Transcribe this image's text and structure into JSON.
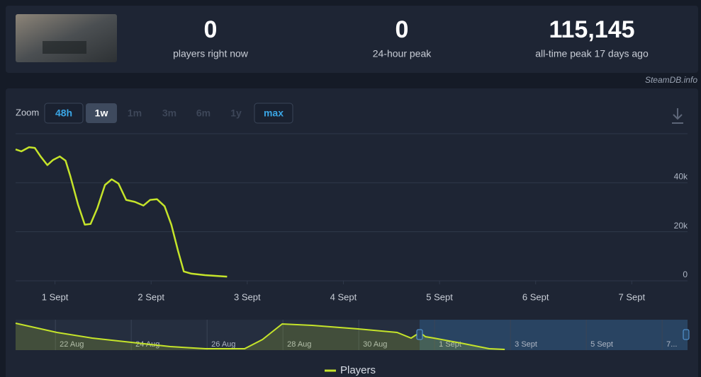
{
  "header": {
    "stats": [
      {
        "value": "0",
        "label": "players right now"
      },
      {
        "value": "0",
        "label": "24-hour peak"
      },
      {
        "value": "115,145",
        "label": "all-time peak 17 days ago"
      }
    ],
    "source": "SteamDB.info"
  },
  "zoom": {
    "label": "Zoom",
    "buttons": [
      "48h",
      "1w",
      "1m",
      "3m",
      "6m",
      "1y",
      "max"
    ]
  },
  "chart_data": [
    {
      "type": "line",
      "x": [
        0.59,
        0.65,
        0.73,
        0.79,
        0.85,
        0.92,
        0.98,
        1.05,
        1.11,
        1.16,
        1.24,
        1.31,
        1.37,
        1.44,
        1.52,
        1.59,
        1.66,
        1.74,
        1.83,
        1.92,
        1.99,
        2.06,
        2.14,
        2.21,
        2.28,
        2.34,
        2.42,
        2.56,
        2.79
      ],
      "series": [
        {
          "name": "Players",
          "color": "#c5e42a",
          "values": [
            53600,
            52800,
            54500,
            54200,
            50700,
            47200,
            49300,
            50700,
            49000,
            42600,
            31000,
            22900,
            23200,
            29600,
            39100,
            41400,
            39700,
            33000,
            32200,
            30700,
            33000,
            33300,
            30400,
            22900,
            12200,
            3800,
            2900,
            2300,
            1700
          ]
        }
      ],
      "xlim": [
        0.59,
        7.58
      ],
      "xticks": [
        {
          "value": 1,
          "label": "1 Sept"
        },
        {
          "value": 2,
          "label": "2 Sept"
        },
        {
          "value": 3,
          "label": "3 Sept"
        },
        {
          "value": 4,
          "label": "4 Sept"
        },
        {
          "value": 5,
          "label": "5 Sept"
        },
        {
          "value": 6,
          "label": "6 Sept"
        },
        {
          "value": 7,
          "label": "7 Sept"
        }
      ],
      "ylim": [
        0,
        60000
      ],
      "yticks": [
        0,
        {
          "value": 20000,
          "label": "20k"
        },
        {
          "value": 40000,
          "label": "40k"
        }
      ],
      "grid": true,
      "legend": "bottom"
    },
    {
      "type": "area",
      "x": [
        20.95,
        22.04,
        22.97,
        24,
        25.03,
        25.96,
        26.99,
        27.46,
        27.98,
        28.77,
        29.98,
        31.01,
        31.38,
        31.61,
        31.76,
        31.98,
        32.69,
        33.44,
        33.85
      ],
      "series": [
        {
          "color": "#c5e42a",
          "values": [
            53000,
            34900,
            23700,
            15300,
            7000,
            2800,
            2800,
            20900,
            51600,
            48800,
            41900,
            34900,
            23700,
            34900,
            26500,
            23700,
            14000,
            2800,
            1400
          ]
        }
      ],
      "xlim": [
        20.95,
        38.67
      ],
      "xticks": [
        {
          "value": 22,
          "label": "22 Aug"
        },
        {
          "value": 24,
          "label": "24 Aug"
        },
        {
          "value": 26,
          "label": "26 Aug"
        },
        {
          "value": 28,
          "label": "28 Aug"
        },
        {
          "value": 30,
          "label": "30 Aug"
        },
        {
          "value": 32,
          "label": "1 Sept"
        },
        {
          "value": 34,
          "label": "3 Sept"
        },
        {
          "value": 36,
          "label": "5 Sept"
        },
        {
          "value": 38,
          "label": "7..."
        }
      ],
      "ylim": [
        0,
        60000
      ],
      "grid": true
    }
  ]
}
